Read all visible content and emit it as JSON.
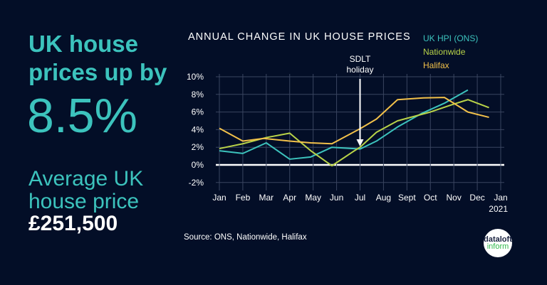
{
  "headline": "UK house prices up by",
  "headline_value": "8.5%",
  "average_label": "Average UK house price",
  "average_value": "£251,500",
  "source": "Source: ONS, Nationwide, Halifax",
  "logo": {
    "line1": "dataloft",
    "line2": "inform"
  },
  "chart_data": {
    "type": "line",
    "title": "ANNUAL CHANGE IN UK HOUSE PRICES",
    "annotation": "SDLT holiday",
    "annotation_x": 6,
    "x_tick_labels": [
      "Jan",
      "Feb",
      "Mar",
      "Apr",
      "May",
      "Jun",
      "Jul",
      "Aug",
      "Sept",
      "Oct",
      "Nov",
      "Dec",
      "Jan"
    ],
    "x_year_label": "2021",
    "xlim": [
      0,
      12
    ],
    "y_tick_labels": [
      "-2%",
      "0%",
      "2%",
      "4%",
      "6%",
      "8%",
      "10%"
    ],
    "ylim": [
      -2,
      10
    ],
    "grid": true,
    "legend_position": "top-right",
    "series": [
      {
        "name": "UK HPI (ONS)",
        "color": "#3cc3bd",
        "points": [
          [
            0,
            1.6
          ],
          [
            1,
            1.3
          ],
          [
            2,
            2.5
          ],
          [
            3,
            0.65
          ],
          [
            3.9,
            0.9
          ],
          [
            4.8,
            2.0
          ],
          [
            6,
            1.8
          ],
          [
            6.7,
            2.7
          ],
          [
            7.6,
            4.3
          ],
          [
            8.6,
            5.8
          ],
          [
            9.6,
            7.0
          ],
          [
            10.6,
            8.5
          ]
        ]
      },
      {
        "name": "Nationwide",
        "color": "#b9d348",
        "points": [
          [
            0,
            1.85
          ],
          [
            1,
            2.4
          ],
          [
            2,
            3.1
          ],
          [
            3,
            3.6
          ],
          [
            3.9,
            1.6
          ],
          [
            4.8,
            -0.1
          ],
          [
            5.7,
            1.5
          ],
          [
            6,
            2.0
          ],
          [
            6.7,
            3.7
          ],
          [
            7.6,
            5.0
          ],
          [
            9,
            6.0
          ],
          [
            10,
            6.9
          ],
          [
            10.6,
            7.4
          ],
          [
            11.5,
            6.5
          ]
        ]
      },
      {
        "name": "Halifax",
        "color": "#f2c14a",
        "points": [
          [
            0,
            4.15
          ],
          [
            1,
            2.7
          ],
          [
            1.9,
            3.0
          ],
          [
            3,
            2.7
          ],
          [
            3.9,
            2.5
          ],
          [
            4.8,
            2.4
          ],
          [
            6,
            4.1
          ],
          [
            6.7,
            5.2
          ],
          [
            7.6,
            7.4
          ],
          [
            8.7,
            7.6
          ],
          [
            9.6,
            7.65
          ],
          [
            10.6,
            6.0
          ],
          [
            11.5,
            5.4
          ]
        ]
      }
    ]
  }
}
